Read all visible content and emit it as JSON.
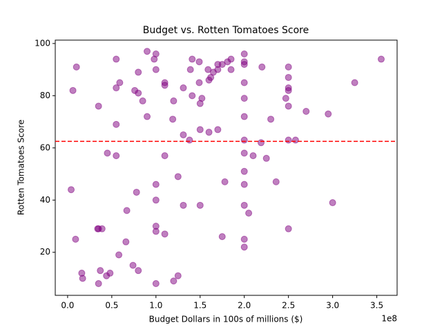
{
  "chart_data": {
    "type": "scatter",
    "title": "Budget vs. Rotten Tomatoes Score",
    "x_label": "Budget Dollars in 100s of millions ($)",
    "y_label": "Rotten Tomatoes Score",
    "x_offset_label": "1e8",
    "series": [
      {
        "color": "#800080",
        "x": [
          4000000,
          6000000,
          10000000,
          9000000,
          16000000,
          17000000,
          34000000,
          35000000,
          39000000,
          35000000,
          35000000,
          37000000,
          44000000,
          48000000,
          45000000,
          55000000,
          55000000,
          55000000,
          59000000,
          55000000,
          58000000,
          66000000,
          67000000,
          74000000,
          78000000,
          80000000,
          76000000,
          80000000,
          80000000,
          85000000,
          90000000,
          90000000,
          98000000,
          100000000,
          100000000,
          100000000,
          100000000,
          100000000,
          100000000,
          100000000,
          110000000,
          110000000,
          110000000,
          110000000,
          119000000,
          120000000,
          120000000,
          125000000,
          125000000,
          131000000,
          131000000,
          131000000,
          138000000,
          139000000,
          141000000,
          141000000,
          149000000,
          149000000,
          150000000,
          152000000,
          150000000,
          150000000,
          159000000,
          160000000,
          162000000,
          160000000,
          165000000,
          170000000,
          170000000,
          170000000,
          175000000,
          175000000,
          178000000,
          181000000,
          185000000,
          185000000,
          200000000,
          200000000,
          200000000,
          200000000,
          200000000,
          200000000,
          200000000,
          200000000,
          200000000,
          200000000,
          200000000,
          200000000,
          200000000,
          205000000,
          210000000,
          219000000,
          220000000,
          225000000,
          230000000,
          236000000,
          247000000,
          250000000,
          250000000,
          250000000,
          250000000,
          250000000,
          250000000,
          250000000,
          258000000,
          270000000,
          295000000,
          300000000,
          325000000,
          355000000
        ],
        "values": [
          44,
          82,
          91,
          25,
          12,
          10,
          29,
          29,
          29,
          76,
          8,
          13,
          11,
          12,
          58,
          57,
          69,
          83,
          85,
          94,
          19,
          24,
          36,
          15,
          43,
          13,
          82,
          81,
          89,
          78,
          72,
          97,
          94,
          96,
          90,
          46,
          40,
          30,
          28,
          8,
          85,
          84,
          57,
          27,
          71,
          78,
          9,
          49,
          11,
          83,
          65,
          38,
          63,
          90,
          94,
          80,
          93,
          85,
          77,
          79,
          67,
          38,
          90,
          86,
          87,
          66,
          89,
          92,
          90,
          67,
          92,
          26,
          47,
          93,
          90,
          94,
          96,
          93,
          92,
          85,
          79,
          72,
          63,
          58,
          51,
          46,
          38,
          25,
          22,
          35,
          57,
          62,
          91,
          56,
          71,
          47,
          79,
          91,
          87,
          83,
          82,
          76,
          63,
          29,
          63,
          74,
          73,
          39,
          85,
          94
        ]
      }
    ],
    "reference_line": {
      "value": 62.5,
      "color": "#ff0000",
      "style": "dashed"
    },
    "xlim": [
      -14000000,
      373000000
    ],
    "ylim": [
      3.5,
      101.3
    ],
    "xticks": [
      {
        "value": 0,
        "label": "0.0"
      },
      {
        "value": 50000000,
        "label": "0.5"
      },
      {
        "value": 100000000,
        "label": "1.0"
      },
      {
        "value": 150000000,
        "label": "1.5"
      },
      {
        "value": 200000000,
        "label": "2.0"
      },
      {
        "value": 250000000,
        "label": "2.5"
      },
      {
        "value": 300000000,
        "label": "3.0"
      },
      {
        "value": 350000000,
        "label": "3.5"
      }
    ],
    "yticks": [
      20,
      40,
      60,
      80,
      100
    ],
    "grid": false
  }
}
